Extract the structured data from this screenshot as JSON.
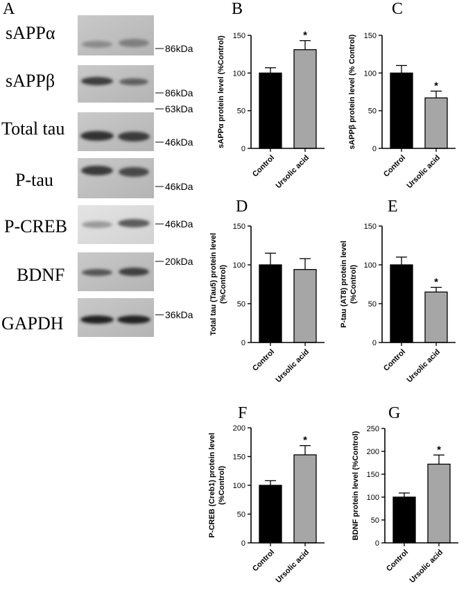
{
  "figure": {
    "panel_a_letter": "A",
    "blots": [
      {
        "label": "sAPPα",
        "markers": [
          "86kDa"
        ]
      },
      {
        "label": "sAPPβ",
        "markers": [
          "86kDa",
          "63kDa"
        ]
      },
      {
        "label": "Total tau",
        "markers": [
          "46kDa"
        ]
      },
      {
        "label": "P-tau",
        "markers": [
          "46kDa"
        ]
      },
      {
        "label": "P-CREB",
        "markers": [
          "46kDa"
        ]
      },
      {
        "label": "BDNF",
        "markers": [
          "20kDa"
        ]
      },
      {
        "label": "GAPDH",
        "markers": [
          "36kDa"
        ]
      }
    ]
  },
  "chart_data": [
    {
      "panel": "B",
      "type": "bar",
      "categories": [
        "Control",
        "Ursolic acid"
      ],
      "values": [
        100,
        131
      ],
      "errors": [
        7,
        12
      ],
      "significance": [
        "",
        "*"
      ],
      "ylabel": [
        "sAPPα protein level (%Control)"
      ],
      "ylim": [
        0,
        150
      ],
      "yticks": [
        0,
        50,
        100,
        150
      ],
      "colors": [
        "#000000",
        "#a6a6a6"
      ]
    },
    {
      "panel": "C",
      "type": "bar",
      "categories": [
        "Control",
        "Ursolic acid"
      ],
      "values": [
        100,
        67
      ],
      "errors": [
        10,
        9
      ],
      "significance": [
        "",
        "*"
      ],
      "ylabel": [
        "sAPPβ protein level (% Control)"
      ],
      "ylim": [
        0,
        150
      ],
      "yticks": [
        0,
        50,
        100,
        150
      ],
      "colors": [
        "#000000",
        "#a6a6a6"
      ]
    },
    {
      "panel": "D",
      "type": "bar",
      "categories": [
        "Control",
        "Ursolic acid"
      ],
      "values": [
        100,
        94
      ],
      "errors": [
        15,
        14
      ],
      "significance": [
        "",
        ""
      ],
      "ylabel": [
        "Total tau (Tau5) protein level",
        "(%Control)"
      ],
      "ylim": [
        0,
        150
      ],
      "yticks": [
        0,
        50,
        100,
        150
      ],
      "colors": [
        "#000000",
        "#a6a6a6"
      ]
    },
    {
      "panel": "E",
      "type": "bar",
      "categories": [
        "Control",
        "Ursolic acid"
      ],
      "values": [
        100,
        65
      ],
      "errors": [
        10,
        6
      ],
      "significance": [
        "",
        "*"
      ],
      "ylabel": [
        "P-tau (AT8) protein level",
        "(%Control)"
      ],
      "ylim": [
        0,
        150
      ],
      "yticks": [
        0,
        50,
        100,
        150
      ],
      "colors": [
        "#000000",
        "#a6a6a6"
      ]
    },
    {
      "panel": "F",
      "type": "bar",
      "categories": [
        "Control",
        "Ursolic acid"
      ],
      "values": [
        100,
        153
      ],
      "errors": [
        8,
        16
      ],
      "significance": [
        "",
        "*"
      ],
      "ylabel": [
        "P-CREB (Creb1) protein level",
        "(%Control)"
      ],
      "ylim": [
        0,
        200
      ],
      "yticks": [
        0,
        50,
        100,
        150,
        200
      ],
      "colors": [
        "#000000",
        "#a6a6a6"
      ]
    },
    {
      "panel": "G",
      "type": "bar",
      "categories": [
        "Control",
        "Ursolic acid"
      ],
      "values": [
        100,
        172
      ],
      "errors": [
        9,
        20
      ],
      "significance": [
        "",
        "*"
      ],
      "ylabel": [
        "BDNF protein level (%Control)"
      ],
      "ylim": [
        0,
        250
      ],
      "yticks": [
        0,
        50,
        100,
        150,
        200,
        250
      ],
      "colors": [
        "#000000",
        "#a6a6a6"
      ]
    }
  ]
}
